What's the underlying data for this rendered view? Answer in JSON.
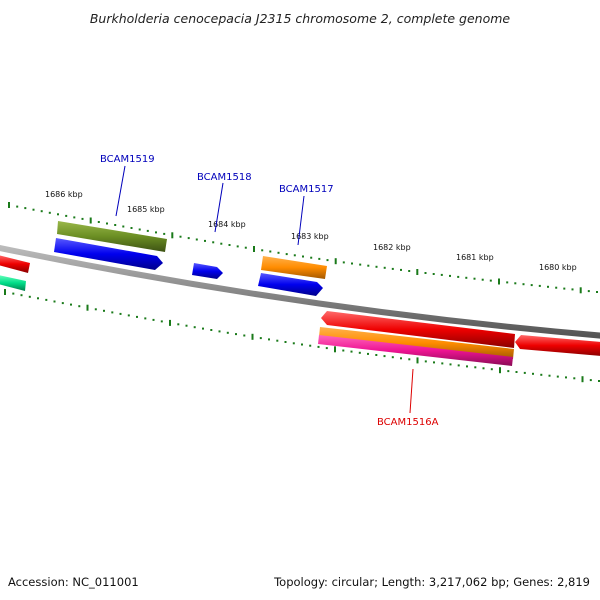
{
  "title": "Burkholderia cenocepacia J2315 chromosome 2, complete genome",
  "footer": {
    "accession": "Accession: NC_011001",
    "summary": "Topology: circular; Length: 3,217,062 bp; Genes: 2,819"
  },
  "ruler_labels": [
    "1686 kbp",
    "1685 kbp",
    "1684 kbp",
    "1683 kbp",
    "1682 kbp",
    "1681 kbp",
    "1680 kbp"
  ],
  "genes": [
    {
      "name": "BCAM1519",
      "color": "#0000bb"
    },
    {
      "name": "BCAM1518",
      "color": "#0000bb"
    },
    {
      "name": "BCAM1517",
      "color": "#0000bb"
    },
    {
      "name": "BCAM1516A",
      "color": "#dd0000"
    }
  ],
  "colors": {
    "backbone": "#888888",
    "ticks": "#1a7a1a",
    "forward_cds": "#0000ee",
    "reverse_cds": "#ee0000",
    "gene_green": "#6b8e23",
    "gene_orange": "#ff8c00",
    "gene_magenta": "#ee1493",
    "gene_teal": "#00dd88"
  }
}
